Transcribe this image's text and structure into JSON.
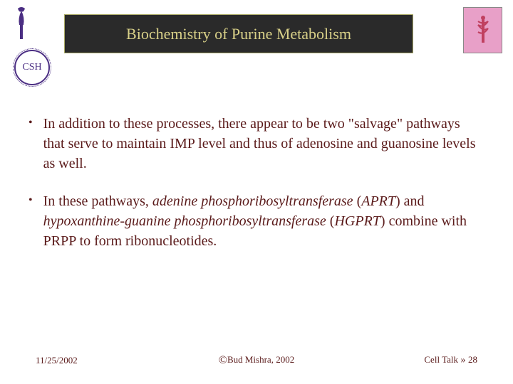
{
  "header": {
    "title": "Biochemistry of Purine Metabolism",
    "title_bg": "#2a2a2a",
    "title_border": "#aaaa66",
    "title_color": "#d8d088",
    "csh_label": "CSH",
    "logo_color": "#4b2e83",
    "right_logo_bg": "#e8a0c8"
  },
  "bullets": [
    {
      "text_parts": [
        {
          "text": "In addition to these processes, there appear to be two \"salvage\" pathways that serve to maintain IMP level and thus of adenosine and guanosine levels as well.",
          "italic": false
        }
      ]
    },
    {
      "text_parts": [
        {
          "text": "In these pathways, ",
          "italic": false
        },
        {
          "text": "adenine phosphoribosyltransferase",
          "italic": true
        },
        {
          "text": " (",
          "italic": false
        },
        {
          "text": "APRT",
          "italic": true
        },
        {
          "text": ") and ",
          "italic": false
        },
        {
          "text": "hypoxanthine-guanine phosphoribosyltransferase",
          "italic": true
        },
        {
          "text": " (",
          "italic": false
        },
        {
          "text": "HGPRT",
          "italic": true
        },
        {
          "text": ") combine with PRPP to form ribonucleotides.",
          "italic": false
        }
      ]
    }
  ],
  "footer": {
    "date": "11/25/2002",
    "copyright": "Bud Mishra, 2002",
    "right_label": "Cell Talk",
    "page_number": "28"
  },
  "styling": {
    "text_color": "#5a1a1a",
    "body_fontsize": 20,
    "background": "#ffffff"
  }
}
